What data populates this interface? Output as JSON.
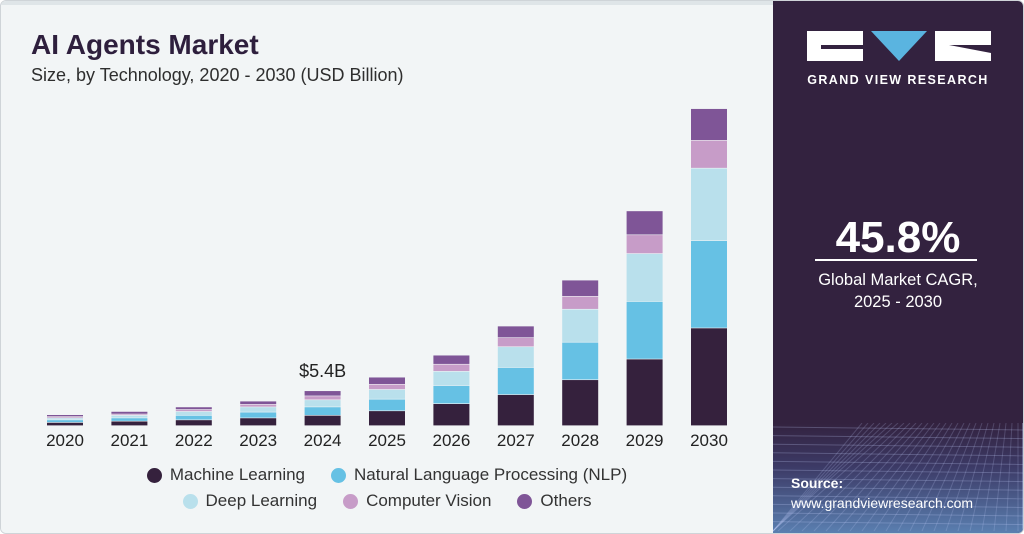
{
  "header": {
    "title": "AI Agents Market",
    "subtitle": "Size, by Technology, 2020 - 2030 (USD Billion)"
  },
  "chart_data": {
    "type": "bar",
    "stacked": true,
    "title": "AI Agents Market",
    "subtitle": "Size, by Technology, 2020 - 2030 (USD Billion)",
    "xlabel": "",
    "ylabel": "",
    "ylim": [
      0,
      52
    ],
    "grid": false,
    "legend_position": "bottom",
    "categories": [
      "2020",
      "2021",
      "2022",
      "2023",
      "2024",
      "2025",
      "2026",
      "2027",
      "2028",
      "2029",
      "2030"
    ],
    "series": [
      {
        "name": "Machine Learning",
        "color": "#35213d",
        "values": [
          0.5,
          0.7,
          0.9,
          1.2,
          1.6,
          2.3,
          3.4,
          4.8,
          7.1,
          10.3,
          15.1
        ]
      },
      {
        "name": "Natural Language Processing (NLP)",
        "color": "#66c1e4",
        "values": [
          0.4,
          0.5,
          0.7,
          0.9,
          1.3,
          1.8,
          2.8,
          4.2,
          5.8,
          8.9,
          13.5
        ]
      },
      {
        "name": "Deep Learning",
        "color": "#b9e0ec",
        "values": [
          0.3,
          0.4,
          0.6,
          0.8,
          1.1,
          1.5,
          2.2,
          3.2,
          5.1,
          7.4,
          11.2
        ]
      },
      {
        "name": "Computer Vision",
        "color": "#c79cc8",
        "values": [
          0.2,
          0.2,
          0.3,
          0.4,
          0.6,
          0.8,
          1.1,
          1.4,
          2.0,
          2.9,
          4.3
        ]
      },
      {
        "name": "Others",
        "color": "#7f5597",
        "values": [
          0.3,
          0.4,
          0.4,
          0.5,
          0.8,
          1.1,
          1.4,
          1.8,
          2.5,
          3.7,
          4.9
        ]
      }
    ],
    "annotations": [
      {
        "category": "2024",
        "text": "$5.4B"
      }
    ]
  },
  "sidebar": {
    "brand": "GRAND VIEW RESEARCH",
    "cagr_value": "45.8%",
    "cagr_label_line1": "Global Market CAGR,",
    "cagr_label_line2": "2025 - 2030",
    "source_label": "Source:",
    "source_url": "www.grandviewresearch.com",
    "colors": {
      "background": "#33223f",
      "logo_accent": "#5ab4e0"
    }
  }
}
